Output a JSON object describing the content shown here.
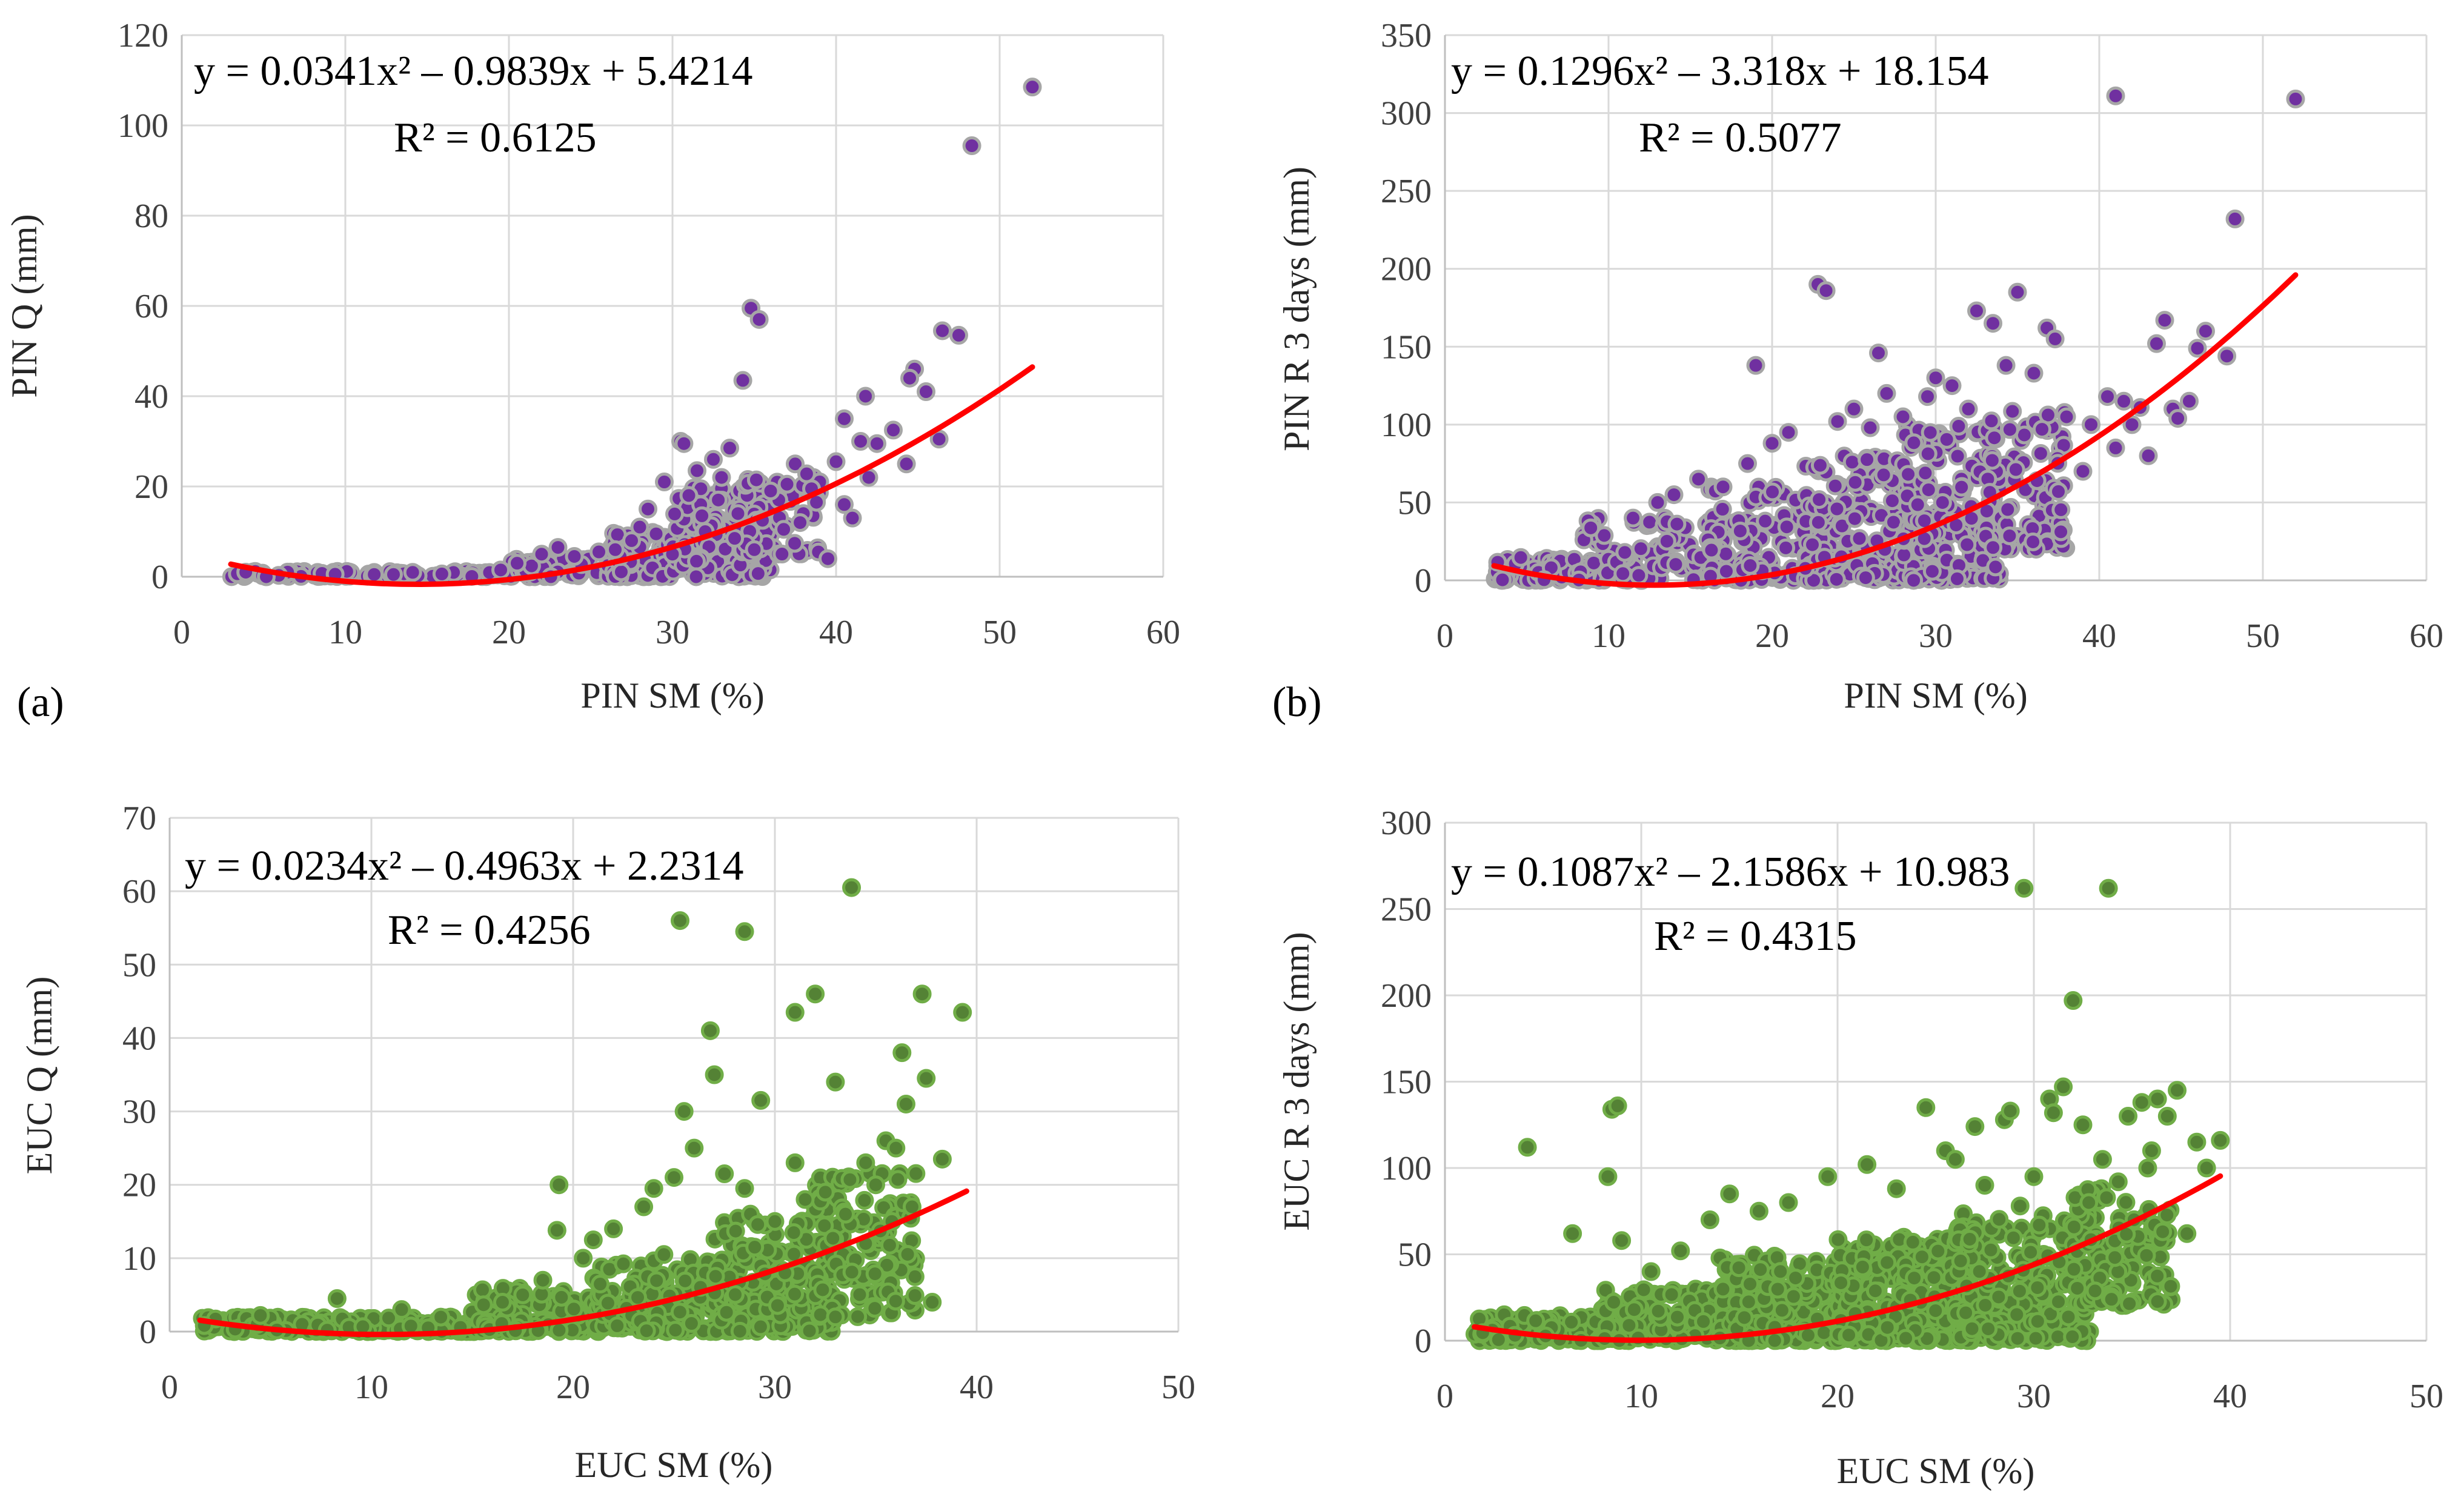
{
  "colors": {
    "purple_fill": "#7030a0",
    "purple_edge": "#a6a6a6",
    "green_fill": "#548235",
    "green_edge": "#70ad47",
    "trend": "#ff0000",
    "grid": "#d9d9d9",
    "axis": "#bfbfbf"
  },
  "chart_data": [
    {
      "type": "scatter",
      "panel_label": "(a)",
      "xlabel": "PIN SM (%)",
      "ylabel": "PIN Q (mm)",
      "xlim": [
        0,
        60
      ],
      "ylim": [
        0,
        120
      ],
      "xticks": [
        0,
        10,
        20,
        30,
        40,
        50,
        60
      ],
      "yticks": [
        0,
        20,
        40,
        60,
        80,
        100,
        120
      ],
      "equation": "y = 0.0341x² – 0.9839x + 5.4214",
      "r_squared": "R² = 0.6125",
      "trend": {
        "a": 0.0341,
        "b": -0.9839,
        "c": 5.4214,
        "x_range": [
          3,
          52
        ]
      },
      "marker_style": "purple",
      "dense_cloud": [
        {
          "x0": 3,
          "x1": 20,
          "ymin": 0,
          "ymax": 1.2,
          "n": 90
        },
        {
          "x0": 20,
          "x1": 26,
          "ymin": 0,
          "ymax": 4,
          "n": 70
        },
        {
          "x0": 26,
          "x1": 30,
          "ymin": 0,
          "ymax": 10,
          "n": 90
        },
        {
          "x0": 30,
          "x1": 36,
          "ymin": 0,
          "ymax": 20,
          "n": 170
        },
        {
          "x0": 34,
          "x1": 39,
          "ymin": 5,
          "ymax": 22,
          "n": 50
        }
      ],
      "points": [
        [
          52.0,
          108.5
        ],
        [
          48.3,
          95.5
        ],
        [
          34.8,
          59.5
        ],
        [
          35.3,
          57.0
        ],
        [
          34.3,
          43.5
        ],
        [
          46.5,
          54.5
        ],
        [
          47.5,
          53.5
        ],
        [
          44.8,
          46.0
        ],
        [
          44.5,
          44.0
        ],
        [
          46.3,
          30.5
        ],
        [
          44.3,
          25.0
        ],
        [
          45.5,
          41.0
        ],
        [
          41.8,
          40.0
        ],
        [
          40.5,
          35.0
        ],
        [
          41.5,
          30.0
        ],
        [
          42.5,
          29.5
        ],
        [
          43.5,
          32.5
        ],
        [
          42.0,
          22.0
        ],
        [
          40.5,
          16.0
        ],
        [
          41.0,
          13.0
        ],
        [
          39.0,
          21.0
        ],
        [
          38.5,
          19.5
        ],
        [
          37.5,
          25.0
        ],
        [
          36.5,
          17.0
        ],
        [
          38.0,
          14.0
        ],
        [
          39.5,
          4.0
        ],
        [
          40.0,
          25.5
        ],
        [
          38.2,
          22.8
        ],
        [
          37.0,
          20.5
        ],
        [
          36.0,
          19.0
        ],
        [
          30.5,
          30.0
        ],
        [
          30.7,
          29.5
        ],
        [
          29.5,
          21.0
        ],
        [
          31.5,
          23.5
        ],
        [
          32.5,
          26.0
        ],
        [
          33.5,
          28.5
        ],
        [
          33.0,
          22.0
        ],
        [
          31.0,
          18.0
        ],
        [
          28.5,
          15.0
        ],
        [
          28.0,
          11.0
        ],
        [
          29.0,
          9.5
        ],
        [
          27.5,
          8.0
        ],
        [
          26.5,
          6.0
        ],
        [
          25.5,
          5.5
        ],
        [
          24.0,
          4.5
        ],
        [
          23.0,
          6.5
        ],
        [
          22.0,
          5.0
        ],
        [
          20.5,
          3.0
        ],
        [
          19.5,
          1.5
        ],
        [
          34.0,
          14.0
        ],
        [
          35.5,
          12.5
        ],
        [
          32.0,
          10.0
        ],
        [
          33.8,
          8.5
        ],
        [
          35.0,
          6.0
        ],
        [
          30.0,
          5.0
        ],
        [
          31.8,
          13.5
        ],
        [
          36.8,
          10.5
        ],
        [
          37.8,
          12.0
        ],
        [
          38.8,
          16.5
        ],
        [
          32.8,
          17.0
        ]
      ]
    },
    {
      "type": "scatter",
      "panel_label": "(b)",
      "xlabel": "PIN SM (%)",
      "ylabel": "PIN R 3 days (mm)",
      "xlim": [
        0,
        60
      ],
      "ylim": [
        0,
        350
      ],
      "xticks": [
        0,
        10,
        20,
        30,
        40,
        50,
        60
      ],
      "yticks": [
        0,
        50,
        100,
        150,
        200,
        250,
        300,
        350
      ],
      "equation": "y = 0.1296x² – 3.318x + 18.154",
      "r_squared": "R² = 0.5077",
      "trend": {
        "a": 0.1296,
        "b": -3.318,
        "c": 18.154,
        "x_range": [
          3,
          52
        ]
      },
      "marker_style": "purple",
      "dense_cloud": [
        {
          "x0": 3,
          "x1": 12,
          "ymin": 0,
          "ymax": 15,
          "n": 110
        },
        {
          "x0": 8,
          "x1": 18,
          "ymin": 0,
          "ymax": 40,
          "n": 100
        },
        {
          "x0": 16,
          "x1": 24,
          "ymin": 0,
          "ymax": 60,
          "n": 130
        },
        {
          "x0": 22,
          "x1": 29,
          "ymin": 0,
          "ymax": 80,
          "n": 170
        },
        {
          "x0": 28,
          "x1": 34,
          "ymin": 0,
          "ymax": 100,
          "n": 170
        },
        {
          "x0": 33,
          "x1": 38,
          "ymin": 20,
          "ymax": 110,
          "n": 80
        }
      ],
      "points": [
        [
          41.0,
          311
        ],
        [
          52.0,
          309
        ],
        [
          48.3,
          232
        ],
        [
          22.8,
          190
        ],
        [
          23.3,
          186
        ],
        [
          35.0,
          185
        ],
        [
          32.5,
          173
        ],
        [
          33.5,
          165
        ],
        [
          44.0,
          167
        ],
        [
          36.8,
          162
        ],
        [
          37.3,
          155
        ],
        [
          43.5,
          152
        ],
        [
          46.5,
          160
        ],
        [
          47.8,
          144
        ],
        [
          46.0,
          149
        ],
        [
          19.0,
          138
        ],
        [
          26.5,
          146
        ],
        [
          34.3,
          138
        ],
        [
          36.0,
          133
        ],
        [
          40.5,
          118
        ],
        [
          41.5,
          115
        ],
        [
          42.5,
          111
        ],
        [
          44.5,
          110
        ],
        [
          45.5,
          115
        ],
        [
          39.5,
          100
        ],
        [
          38.0,
          105
        ],
        [
          36.5,
          97
        ],
        [
          42.0,
          100
        ],
        [
          41.0,
          85
        ],
        [
          43.0,
          80
        ],
        [
          39.0,
          70
        ],
        [
          37.5,
          57
        ],
        [
          15.5,
          65
        ],
        [
          14.0,
          55
        ],
        [
          13.0,
          50
        ],
        [
          11.5,
          40
        ],
        [
          18.5,
          75
        ],
        [
          17.0,
          60
        ],
        [
          21.0,
          95
        ],
        [
          20.0,
          88
        ],
        [
          25.0,
          110
        ],
        [
          24.0,
          102
        ],
        [
          27.0,
          120
        ],
        [
          29.5,
          118
        ],
        [
          31.0,
          125
        ],
        [
          30.0,
          130
        ],
        [
          28.0,
          105
        ],
        [
          32.0,
          110
        ],
        [
          26.0,
          98
        ],
        [
          44.8,
          104
        ]
      ]
    },
    {
      "type": "scatter",
      "panel_label": "",
      "xlabel": "EUC SM (%)",
      "ylabel": "EUC Q (mm)",
      "xlim": [
        0,
        50
      ],
      "ylim": [
        0,
        70
      ],
      "xticks": [
        0,
        10,
        20,
        30,
        40,
        50
      ],
      "yticks": [
        0,
        10,
        20,
        30,
        40,
        50,
        60,
        70
      ],
      "equation": "y = 0.0234x² – 0.4963x + 2.2314",
      "r_squared": "R² = 0.4256",
      "trend": {
        "a": 0.0234,
        "b": -0.4963,
        "c": 2.2314,
        "x_range": [
          1.5,
          39.5
        ]
      },
      "marker_style": "green",
      "dense_cloud": [
        {
          "x0": 1.5,
          "x1": 16,
          "ymin": 0,
          "ymax": 2,
          "n": 180
        },
        {
          "x0": 15,
          "x1": 22,
          "ymin": 0,
          "ymax": 6,
          "n": 140
        },
        {
          "x0": 21,
          "x1": 28,
          "ymin": 0,
          "ymax": 10,
          "n": 200
        },
        {
          "x0": 27,
          "x1": 33,
          "ymin": 0,
          "ymax": 16,
          "n": 200
        },
        {
          "x0": 32,
          "x1": 37,
          "ymin": 2,
          "ymax": 22,
          "n": 120
        }
      ],
      "points": [
        [
          33.8,
          60.5
        ],
        [
          25.3,
          56.0
        ],
        [
          28.5,
          54.5
        ],
        [
          32.0,
          46.0
        ],
        [
          37.3,
          46.0
        ],
        [
          39.3,
          43.5
        ],
        [
          31.0,
          43.5
        ],
        [
          26.8,
          41.0
        ],
        [
          36.3,
          38.0
        ],
        [
          27.0,
          35.0
        ],
        [
          37.5,
          34.5
        ],
        [
          33.0,
          34.0
        ],
        [
          29.3,
          31.5
        ],
        [
          36.5,
          31.0
        ],
        [
          26.0,
          25.0
        ],
        [
          25.5,
          30.0
        ],
        [
          38.3,
          23.5
        ],
        [
          31.0,
          23.0
        ],
        [
          35.5,
          26.0
        ],
        [
          19.3,
          20.0
        ],
        [
          19.2,
          13.8
        ],
        [
          8.3,
          4.5
        ],
        [
          4.5,
          2.2
        ],
        [
          11.5,
          3.0
        ],
        [
          37.8,
          4.0
        ],
        [
          27.5,
          21.5
        ],
        [
          28.5,
          19.5
        ],
        [
          24.0,
          19.5
        ],
        [
          23.5,
          17.0
        ],
        [
          25.0,
          21.0
        ],
        [
          30.0,
          15.0
        ],
        [
          31.5,
          18.0
        ],
        [
          32.5,
          19.0
        ],
        [
          34.5,
          23.0
        ],
        [
          36.0,
          25.0
        ],
        [
          35.0,
          20.0
        ],
        [
          33.5,
          16.0
        ],
        [
          22.0,
          14.0
        ],
        [
          21.0,
          12.5
        ],
        [
          20.5,
          10.0
        ],
        [
          18.5,
          7.0
        ],
        [
          17.5,
          5.0
        ],
        [
          16.5,
          4.0
        ],
        [
          24.5,
          10.5
        ],
        [
          29.0,
          11.5
        ],
        [
          30.5,
          8.0
        ],
        [
          33.0,
          2.0
        ],
        [
          34.5,
          12.0
        ],
        [
          35.8,
          15.0
        ],
        [
          36.8,
          17.0
        ]
      ]
    },
    {
      "type": "scatter",
      "panel_label": "",
      "xlabel": "EUC SM (%)",
      "ylabel": "EUC R 3 days (mm)",
      "xlim": [
        0,
        50
      ],
      "ylim": [
        0,
        300
      ],
      "xticks": [
        0,
        10,
        20,
        30,
        40,
        50
      ],
      "yticks": [
        0,
        50,
        100,
        150,
        200,
        250,
        300
      ],
      "equation": "y = 0.1087x² – 2.1586x + 10.983",
      "r_squared": "R² = 0.4315",
      "trend": {
        "a": 0.1087,
        "b": -2.1586,
        "c": 10.983,
        "x_range": [
          1.5,
          39.5
        ]
      },
      "marker_style": "green",
      "dense_cloud": [
        {
          "x0": 1.5,
          "x1": 10,
          "ymin": 0,
          "ymax": 15,
          "n": 160
        },
        {
          "x0": 8,
          "x1": 16,
          "ymin": 0,
          "ymax": 30,
          "n": 150
        },
        {
          "x0": 14,
          "x1": 21,
          "ymin": 0,
          "ymax": 50,
          "n": 220
        },
        {
          "x0": 20,
          "x1": 27,
          "ymin": 0,
          "ymax": 60,
          "n": 260
        },
        {
          "x0": 26,
          "x1": 33,
          "ymin": 0,
          "ymax": 75,
          "n": 220
        },
        {
          "x0": 32,
          "x1": 37,
          "ymin": 20,
          "ymax": 90,
          "n": 110
        }
      ],
      "points": [
        [
          29.5,
          262
        ],
        [
          33.8,
          262
        ],
        [
          32.0,
          197
        ],
        [
          31.5,
          147
        ],
        [
          30.8,
          140
        ],
        [
          37.3,
          145
        ],
        [
          36.3,
          140
        ],
        [
          35.5,
          138
        ],
        [
          36.8,
          130
        ],
        [
          34.8,
          130
        ],
        [
          38.3,
          115
        ],
        [
          39.5,
          116
        ],
        [
          36.0,
          110
        ],
        [
          32.5,
          125
        ],
        [
          31.0,
          132
        ],
        [
          28.5,
          128
        ],
        [
          28.8,
          133
        ],
        [
          24.5,
          135
        ],
        [
          27.0,
          124
        ],
        [
          25.5,
          110
        ],
        [
          26.0,
          105
        ],
        [
          21.5,
          102
        ],
        [
          19.5,
          95
        ],
        [
          8.3,
          95
        ],
        [
          8.5,
          134
        ],
        [
          8.8,
          136
        ],
        [
          4.2,
          112
        ],
        [
          6.5,
          62
        ],
        [
          9.0,
          58
        ],
        [
          10.5,
          40
        ],
        [
          12.0,
          52
        ],
        [
          13.5,
          70
        ],
        [
          14.5,
          85
        ],
        [
          16.0,
          75
        ],
        [
          17.5,
          80
        ],
        [
          23.0,
          88
        ],
        [
          30.0,
          95
        ],
        [
          33.5,
          105
        ],
        [
          37.8,
          62
        ],
        [
          38.8,
          100
        ],
        [
          34.3,
          92
        ],
        [
          35.8,
          100
        ],
        [
          32.8,
          80
        ],
        [
          27.5,
          90
        ],
        [
          29.3,
          78
        ]
      ]
    }
  ]
}
